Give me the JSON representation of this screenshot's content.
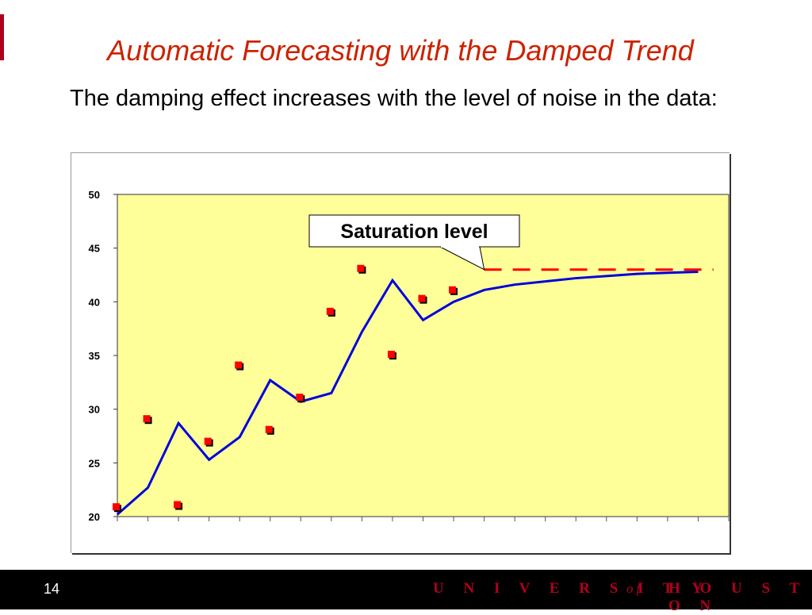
{
  "slide": {
    "title": "Automatic Forecasting with the Damped Trend",
    "subtitle": "The damping effect increases with the level of noise in the data:",
    "page_number": "14"
  },
  "footer": {
    "university": "U N I V E R S I T Y",
    "of": "of",
    "houston": "H O U S T O N"
  },
  "chart_data": {
    "type": "line",
    "title": "",
    "xlabel": "",
    "ylabel": "",
    "ylim": [
      20,
      50
    ],
    "yticks": [
      20,
      25,
      30,
      35,
      40,
      45,
      50
    ],
    "x": [
      1,
      2,
      3,
      4,
      5,
      6,
      7,
      8,
      9,
      10,
      11,
      12,
      13,
      14,
      15,
      16,
      17,
      18,
      19,
      20
    ],
    "grid": false,
    "plot_background": "#ffff99",
    "series": [
      {
        "kind": "scatter",
        "color": "#ff0000",
        "x": [
          1,
          2,
          3,
          4,
          5,
          6,
          7,
          8,
          9,
          10,
          11,
          12
        ],
        "values": [
          20.8,
          29.0,
          21.0,
          26.9,
          34.0,
          28.0,
          31.0,
          39.0,
          43.0,
          35.0,
          40.2,
          41.0
        ]
      },
      {
        "kind": "line",
        "color": "#0000dd",
        "x": [
          1,
          2,
          3,
          4,
          5,
          6,
          7,
          8,
          9,
          10,
          11,
          12,
          13,
          14,
          15,
          16,
          17,
          18,
          19,
          20
        ],
        "values": [
          20.2,
          22.7,
          28.7,
          25.3,
          27.4,
          32.7,
          30.7,
          31.5,
          37.2,
          42.0,
          38.3,
          40.0,
          41.1,
          41.6,
          41.9,
          42.2,
          42.4,
          42.6,
          42.7,
          42.8
        ]
      },
      {
        "kind": "dashed-line",
        "color": "#ff0000",
        "x": [
          13,
          20
        ],
        "values": [
          43.0,
          43.0
        ]
      }
    ],
    "annotations": [
      {
        "text": "Saturation level",
        "pointer_x": 13,
        "pointer_y": 43.0
      }
    ]
  }
}
